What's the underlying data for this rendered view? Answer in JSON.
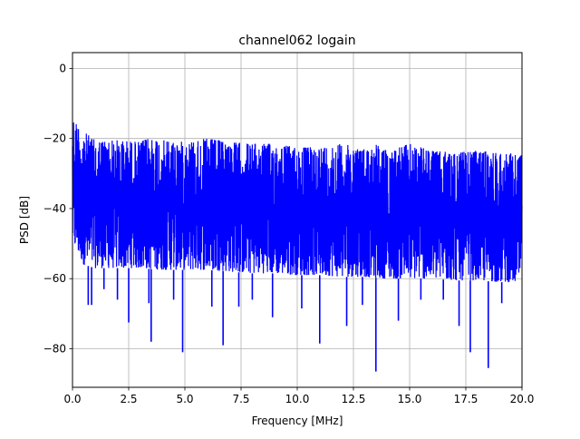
{
  "chart_data": {
    "type": "line",
    "title": "channel062 logain",
    "xlabel": "Frequency [MHz]",
    "ylabel": "PSD [dB]",
    "xlim": [
      0,
      20
    ],
    "ylim": [
      -91,
      4.5
    ],
    "xticks": [
      "0.0",
      "2.5",
      "5.0",
      "7.5",
      "10.0",
      "12.5",
      "15.0",
      "17.5",
      "20.0"
    ],
    "yticks": [
      "0",
      "−20",
      "−40",
      "−60",
      "−80"
    ],
    "grid": true,
    "series": [
      {
        "color": "#0000ff",
        "envelope_upper": [
          [
            0.0,
            -11.5
          ],
          [
            0.1,
            -17
          ],
          [
            0.2,
            -14.5
          ],
          [
            0.35,
            -18.5
          ],
          [
            0.6,
            -18.5
          ],
          [
            1.0,
            -20.5
          ],
          [
            2.0,
            -20.5
          ],
          [
            3.0,
            -21
          ],
          [
            3.5,
            -19.5
          ],
          [
            4.0,
            -20.5
          ],
          [
            5.0,
            -21
          ],
          [
            6.0,
            -20
          ],
          [
            7.0,
            -21
          ],
          [
            8.0,
            -21.5
          ],
          [
            9.0,
            -21.5
          ],
          [
            10.0,
            -22.5
          ],
          [
            11.0,
            -22.5
          ],
          [
            12.0,
            -21.5
          ],
          [
            13.0,
            -23
          ],
          [
            13.5,
            -21.5
          ],
          [
            14.0,
            -23.5
          ],
          [
            15.0,
            -21.5
          ],
          [
            16.0,
            -23.5
          ],
          [
            17.0,
            -24
          ],
          [
            18.0,
            -23.5
          ],
          [
            19.0,
            -24
          ],
          [
            20.0,
            -24.5
          ]
        ],
        "envelope_lower": [
          [
            0.0,
            -50
          ],
          [
            0.5,
            -56
          ],
          [
            1.0,
            -57
          ],
          [
            2.0,
            -57
          ],
          [
            3.0,
            -57
          ],
          [
            4.0,
            -57.5
          ],
          [
            5.0,
            -57.5
          ],
          [
            6.0,
            -57.5
          ],
          [
            7.0,
            -58
          ],
          [
            8.0,
            -58.5
          ],
          [
            9.0,
            -58.5
          ],
          [
            10.0,
            -59
          ],
          [
            11.0,
            -59
          ],
          [
            12.0,
            -59.5
          ],
          [
            13.0,
            -59.5
          ],
          [
            14.0,
            -60
          ],
          [
            15.0,
            -60
          ],
          [
            16.0,
            -60
          ],
          [
            17.0,
            -60.5
          ],
          [
            18.0,
            -60.5
          ],
          [
            19.0,
            -61
          ],
          [
            20.0,
            -61
          ]
        ],
        "dips": [
          [
            0.7,
            -67.5
          ],
          [
            0.85,
            -67.5
          ],
          [
            1.4,
            -63
          ],
          [
            2.0,
            -66
          ],
          [
            2.5,
            -72.5
          ],
          [
            3.4,
            -67
          ],
          [
            3.5,
            -78
          ],
          [
            4.5,
            -66
          ],
          [
            4.9,
            -81
          ],
          [
            6.2,
            -68
          ],
          [
            6.7,
            -79
          ],
          [
            7.4,
            -68
          ],
          [
            8.0,
            -66
          ],
          [
            8.9,
            -71
          ],
          [
            10.2,
            -68.5
          ],
          [
            11.0,
            -78.5
          ],
          [
            12.2,
            -73.5
          ],
          [
            12.9,
            -67.5
          ],
          [
            13.5,
            -86.5
          ],
          [
            14.5,
            -72
          ],
          [
            15.5,
            -66
          ],
          [
            16.5,
            -66
          ],
          [
            17.2,
            -73.5
          ],
          [
            17.7,
            -81
          ],
          [
            18.5,
            -85.5
          ],
          [
            19.1,
            -67
          ]
        ]
      }
    ]
  }
}
